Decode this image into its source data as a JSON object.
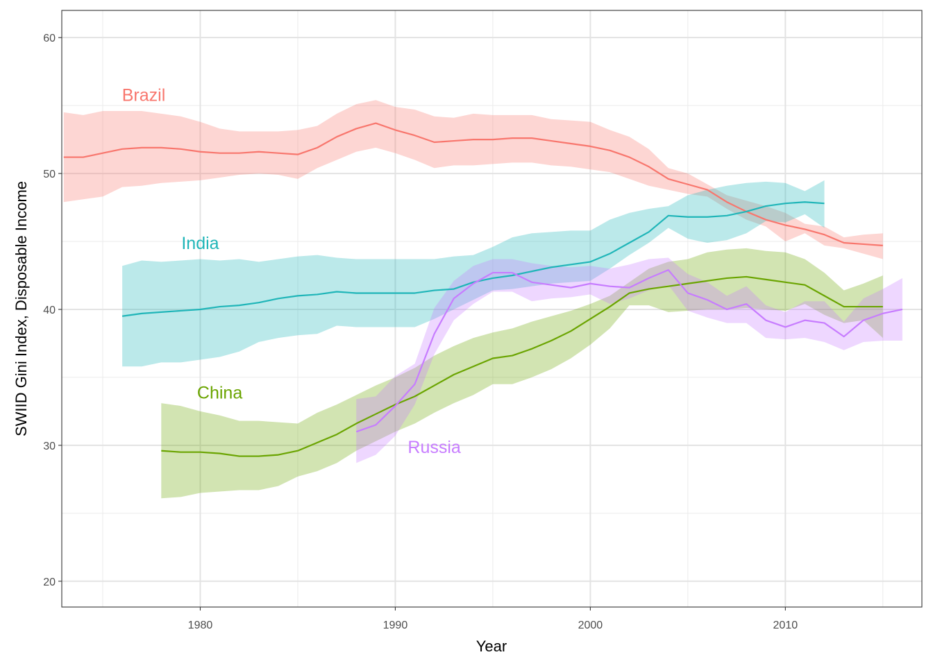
{
  "chart_data": {
    "type": "line",
    "title": "",
    "xlabel": "Year",
    "ylabel": "SWIID Gini Index, Disposable Income",
    "xlim": [
      1972.9,
      2017.0
    ],
    "ylim": [
      18.1,
      62.0
    ],
    "x_ticks": [
      1980,
      1990,
      2000,
      2010
    ],
    "x_tick_labels": [
      "1980",
      "1990",
      "2000",
      "2010"
    ],
    "x_minor_ticks": [
      1975,
      1985,
      1995,
      2005,
      2015
    ],
    "y_ticks": [
      20,
      30,
      40,
      50,
      60
    ],
    "y_tick_labels": [
      "20",
      "30",
      "40",
      "50",
      "60"
    ],
    "y_minor_ticks": [
      25,
      35,
      45,
      55
    ],
    "grid": true,
    "legend": "none (direct labels)",
    "series": [
      {
        "name": "Brazil",
        "color": "#f8766d",
        "label": {
          "text": "Brazil",
          "x": 1977.1,
          "y": 55.8
        },
        "x": [
          1973,
          1974,
          1975,
          1976,
          1977,
          1978,
          1979,
          1980,
          1981,
          1982,
          1983,
          1984,
          1985,
          1986,
          1987,
          1988,
          1989,
          1990,
          1991,
          1992,
          1993,
          1994,
          1995,
          1996,
          1997,
          1998,
          1999,
          2000,
          2001,
          2002,
          2003,
          2004,
          2005,
          2006,
          2007,
          2008,
          2009,
          2010,
          2011,
          2012,
          2013,
          2014,
          2015
        ],
        "values": [
          51.2,
          51.2,
          51.5,
          51.8,
          51.9,
          51.9,
          51.8,
          51.6,
          51.5,
          51.5,
          51.6,
          51.5,
          51.4,
          51.9,
          52.7,
          53.3,
          53.7,
          53.2,
          52.8,
          52.3,
          52.4,
          52.5,
          52.5,
          52.6,
          52.6,
          52.4,
          52.2,
          52.0,
          51.7,
          51.2,
          50.5,
          49.6,
          49.2,
          48.8,
          47.9,
          47.2,
          46.6,
          46.2,
          45.9,
          45.5,
          44.9,
          44.8,
          44.7
        ],
        "upper": [
          54.5,
          54.3,
          54.6,
          54.6,
          54.6,
          54.4,
          54.2,
          53.8,
          53.3,
          53.1,
          53.1,
          53.1,
          53.2,
          53.5,
          54.4,
          55.1,
          55.4,
          54.9,
          54.7,
          54.2,
          54.1,
          54.4,
          54.3,
          54.3,
          54.3,
          54.0,
          53.9,
          53.8,
          53.2,
          52.7,
          51.8,
          50.4,
          50.0,
          49.2,
          48.4,
          48.0,
          47.6,
          47.1,
          46.3,
          46.1,
          45.3,
          45.5,
          45.6
        ],
        "lower": [
          47.9,
          48.1,
          48.3,
          49.0,
          49.1,
          49.3,
          49.4,
          49.5,
          49.7,
          49.9,
          50.0,
          49.9,
          49.6,
          50.4,
          51.0,
          51.6,
          51.9,
          51.5,
          51.0,
          50.4,
          50.6,
          50.6,
          50.7,
          50.8,
          50.8,
          50.6,
          50.5,
          50.3,
          50.1,
          49.6,
          49.1,
          48.8,
          48.5,
          48.3,
          47.4,
          46.6,
          46.1,
          45.0,
          45.6,
          44.7,
          44.5,
          44.1,
          43.7
        ]
      },
      {
        "name": "India",
        "color": "#1fb5b8",
        "label": {
          "text": "India",
          "x": 1980.0,
          "y": 44.9
        },
        "x": [
          1976,
          1977,
          1978,
          1979,
          1980,
          1981,
          1982,
          1983,
          1984,
          1985,
          1986,
          1987,
          1988,
          1989,
          1990,
          1991,
          1992,
          1993,
          1994,
          1995,
          1996,
          1997,
          1998,
          1999,
          2000,
          2001,
          2002,
          2003,
          2004,
          2005,
          2006,
          2007,
          2008,
          2009,
          2010,
          2011,
          2012
        ],
        "values": [
          39.5,
          39.7,
          39.8,
          39.9,
          40.0,
          40.2,
          40.3,
          40.5,
          40.8,
          41.0,
          41.1,
          41.3,
          41.2,
          41.2,
          41.2,
          41.2,
          41.4,
          41.5,
          42.0,
          42.3,
          42.5,
          42.8,
          43.1,
          43.3,
          43.5,
          44.1,
          44.9,
          45.7,
          46.9,
          46.8,
          46.8,
          46.9,
          47.2,
          47.6,
          47.8,
          47.9,
          47.8
        ],
        "upper": [
          43.2,
          43.6,
          43.5,
          43.6,
          43.7,
          43.6,
          43.7,
          43.5,
          43.7,
          43.9,
          44.0,
          43.8,
          43.7,
          43.7,
          43.7,
          43.7,
          43.7,
          43.9,
          44.0,
          44.6,
          45.3,
          45.6,
          45.7,
          45.8,
          45.8,
          46.6,
          47.1,
          47.4,
          47.6,
          48.4,
          48.8,
          49.1,
          49.3,
          49.4,
          49.3,
          48.7,
          49.5
        ],
        "lower": [
          35.8,
          35.8,
          36.1,
          36.1,
          36.3,
          36.5,
          36.9,
          37.6,
          37.9,
          38.1,
          38.2,
          38.8,
          38.7,
          38.7,
          38.7,
          38.7,
          39.3,
          40.0,
          40.7,
          41.4,
          41.5,
          41.7,
          41.9,
          42.0,
          42.1,
          43.0,
          44.0,
          44.9,
          46.0,
          45.2,
          44.9,
          45.1,
          45.6,
          46.5,
          46.4,
          47.0,
          46.0
        ]
      },
      {
        "name": "China",
        "color": "#6aa400",
        "label": {
          "text": "China",
          "x": 1981.0,
          "y": 33.9
        },
        "x": [
          1978,
          1979,
          1980,
          1981,
          1982,
          1983,
          1984,
          1985,
          1986,
          1987,
          1988,
          1989,
          1990,
          1991,
          1992,
          1993,
          1994,
          1995,
          1996,
          1997,
          1998,
          1999,
          2000,
          2001,
          2002,
          2003,
          2004,
          2005,
          2006,
          2007,
          2008,
          2009,
          2010,
          2011,
          2012,
          2013,
          2014,
          2015
        ],
        "values": [
          29.6,
          29.5,
          29.5,
          29.4,
          29.2,
          29.2,
          29.3,
          29.6,
          30.2,
          30.8,
          31.6,
          32.3,
          33.0,
          33.6,
          34.4,
          35.2,
          35.8,
          36.4,
          36.6,
          37.1,
          37.7,
          38.4,
          39.3,
          40.2,
          41.2,
          41.5,
          41.7,
          41.9,
          42.1,
          42.3,
          42.4,
          42.2,
          42.0,
          41.8,
          41.0,
          40.2,
          40.2,
          40.2
        ],
        "upper": [
          33.1,
          32.9,
          32.5,
          32.2,
          31.8,
          31.8,
          31.7,
          31.6,
          32.4,
          33.0,
          33.7,
          34.4,
          35.0,
          35.7,
          36.6,
          37.3,
          37.9,
          38.3,
          38.6,
          39.1,
          39.5,
          39.9,
          40.4,
          41.0,
          42.0,
          43.0,
          43.5,
          43.7,
          44.2,
          44.4,
          44.5,
          44.3,
          44.2,
          43.7,
          42.7,
          41.4,
          41.9,
          42.5
        ],
        "lower": [
          26.1,
          26.2,
          26.5,
          26.6,
          26.7,
          26.7,
          27.0,
          27.7,
          28.1,
          28.7,
          29.6,
          30.3,
          31.0,
          31.6,
          32.4,
          33.1,
          33.7,
          34.5,
          34.5,
          35.0,
          35.6,
          36.4,
          37.4,
          38.6,
          40.3,
          40.3,
          39.8,
          39.9,
          40.0,
          40.0,
          40.1,
          40.0,
          39.9,
          40.4,
          39.6,
          39.0,
          39.2,
          37.9
        ]
      },
      {
        "name": "Russia",
        "color": "#c77cff",
        "label": {
          "text": "Russia",
          "x": 1992.0,
          "y": 29.9
        },
        "x": [
          1988,
          1989,
          1990,
          1991,
          1992,
          1993,
          1994,
          1995,
          1996,
          1997,
          1998,
          1999,
          2000,
          2001,
          2002,
          2003,
          2004,
          2005,
          2006,
          2007,
          2008,
          2009,
          2010,
          2011,
          2012,
          2013,
          2014,
          2015,
          2016
        ],
        "values": [
          31.0,
          31.5,
          32.9,
          34.5,
          38.2,
          40.8,
          41.9,
          42.7,
          42.7,
          42.0,
          41.8,
          41.6,
          41.9,
          41.7,
          41.6,
          42.3,
          42.9,
          41.2,
          40.7,
          40.0,
          40.4,
          39.2,
          38.7,
          39.2,
          39.0,
          38.0,
          39.2,
          39.7,
          40.0
        ],
        "upper": [
          33.4,
          33.6,
          35.1,
          36.0,
          40.1,
          42.1,
          43.2,
          43.7,
          43.7,
          43.4,
          43.2,
          43.1,
          43.2,
          43.0,
          43.3,
          43.7,
          43.8,
          42.6,
          42.0,
          41.0,
          41.7,
          40.3,
          39.8,
          40.6,
          40.6,
          39.1,
          40.8,
          41.5,
          42.3
        ],
        "lower": [
          28.7,
          29.3,
          30.7,
          33.0,
          36.7,
          39.2,
          40.4,
          41.3,
          41.3,
          40.6,
          40.8,
          40.9,
          41.1,
          40.4,
          40.8,
          41.4,
          41.8,
          39.9,
          39.4,
          39.0,
          39.0,
          37.9,
          37.8,
          37.9,
          37.6,
          37.0,
          37.6,
          37.7,
          37.7
        ]
      }
    ]
  }
}
